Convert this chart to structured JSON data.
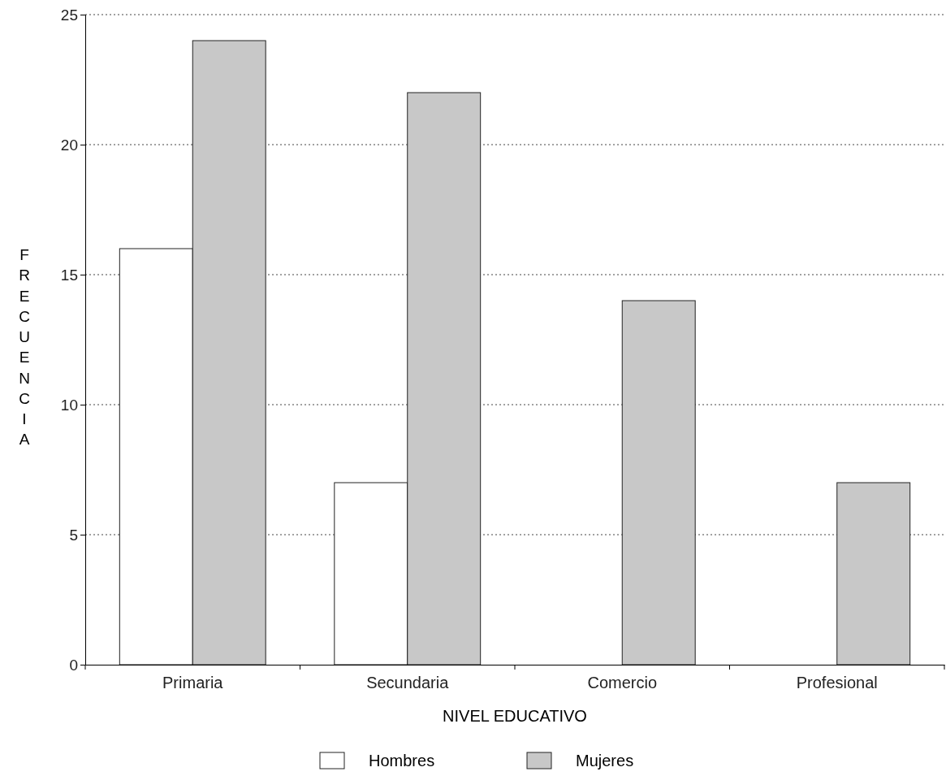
{
  "chart_data": {
    "type": "bar",
    "xlabel": "NIVEL EDUCATIVO",
    "ylabel": "FRECUENCIA",
    "categories": [
      "Primaria",
      "Secundaria",
      "Comercio",
      "Profesional"
    ],
    "series": [
      {
        "name": "Hombres",
        "color": "#ffffff",
        "values": [
          16,
          7,
          0,
          0
        ]
      },
      {
        "name": "Mujeres",
        "color": "#c8c8c8",
        "values": [
          24,
          22,
          14,
          7
        ]
      }
    ],
    "ylim": [
      0,
      25
    ],
    "yticks": [
      0,
      5,
      10,
      15,
      20,
      25
    ],
    "grid": "y",
    "legend": "bottom"
  }
}
